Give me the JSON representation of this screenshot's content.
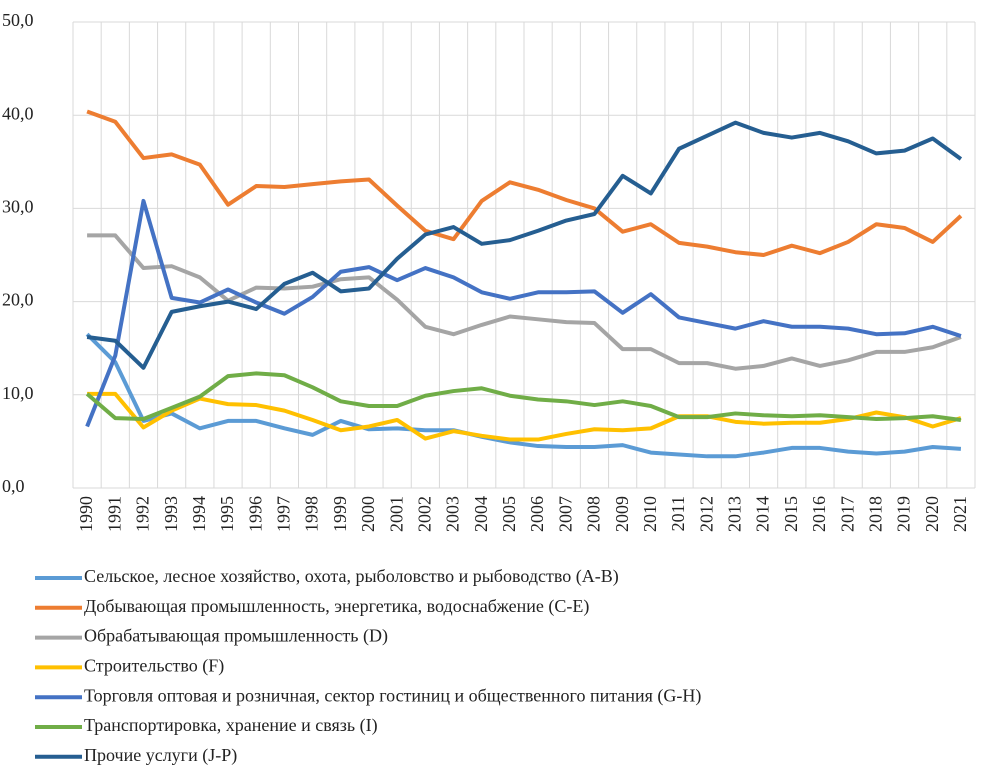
{
  "chart_data": {
    "type": "line",
    "categories": [
      "1990",
      "1991",
      "1992",
      "1993",
      "1994",
      "1995",
      "1996",
      "1997",
      "1998",
      "1999",
      "2000",
      "2001",
      "2002",
      "2003",
      "2004",
      "2005",
      "2006",
      "2007",
      "2008",
      "2009",
      "2010",
      "2011",
      "2012",
      "2013",
      "2014",
      "2015",
      "2016",
      "2017",
      "2018",
      "2019",
      "2020",
      "2021"
    ],
    "series": [
      {
        "name": "Сельское, лесное хозяйство, охота, рыболовство и рыбоводство (A-B)",
        "color": "#5b9bd5",
        "values": [
          16.5,
          13.5,
          7.2,
          8.0,
          6.4,
          7.2,
          7.2,
          6.4,
          5.7,
          7.2,
          6.3,
          6.4,
          6.2,
          6.2,
          5.5,
          4.9,
          4.5,
          4.4,
          4.4,
          4.6,
          3.8,
          3.6,
          3.4,
          3.4,
          3.8,
          4.3,
          4.3,
          3.9,
          3.7,
          3.9,
          4.4,
          4.2
        ]
      },
      {
        "name": "Добывающая промышленность, энергетика, водоснабжение (C-E)",
        "color": "#ed7d31",
        "values": [
          40.4,
          39.3,
          35.4,
          35.8,
          34.7,
          30.4,
          32.4,
          32.3,
          32.6,
          32.9,
          33.1,
          30.3,
          27.6,
          26.7,
          30.8,
          32.8,
          32.0,
          30.9,
          30.0,
          27.5,
          28.3,
          26.3,
          25.9,
          25.3,
          25.0,
          26.0,
          25.2,
          26.4,
          28.3,
          27.9,
          26.4,
          29.2
        ]
      },
      {
        "name": "Обрабатывающая промышленность (D)",
        "color": "#a5a5a5",
        "values": [
          27.1,
          27.1,
          23.6,
          23.8,
          22.6,
          20.1,
          21.5,
          21.4,
          21.6,
          22.4,
          22.6,
          20.2,
          17.3,
          16.5,
          17.5,
          18.4,
          18.1,
          17.8,
          17.7,
          14.9,
          14.9,
          13.4,
          13.4,
          12.8,
          13.1,
          13.9,
          13.1,
          13.7,
          14.6,
          14.6,
          15.1,
          16.2
        ]
      },
      {
        "name": "Строительство (F)",
        "color": "#ffc000",
        "values": [
          10.1,
          10.1,
          6.5,
          8.3,
          9.6,
          9.0,
          8.9,
          8.3,
          7.3,
          6.2,
          6.6,
          7.3,
          5.3,
          6.1,
          5.6,
          5.2,
          5.2,
          5.8,
          6.3,
          6.2,
          6.4,
          7.7,
          7.7,
          7.1,
          6.9,
          7.0,
          7.0,
          7.4,
          8.1,
          7.6,
          6.6,
          7.5
        ]
      },
      {
        "name": "Торговля оптовая и розничная, сектор гостиниц и общественного питания (G-H)",
        "color": "#4472c4",
        "values": [
          6.6,
          14.2,
          30.8,
          20.4,
          19.9,
          21.3,
          19.9,
          18.7,
          20.5,
          23.2,
          23.7,
          22.3,
          23.6,
          22.6,
          21.0,
          20.3,
          21.0,
          21.0,
          21.1,
          18.8,
          20.8,
          18.3,
          17.7,
          17.1,
          17.9,
          17.3,
          17.3,
          17.1,
          16.5,
          16.6,
          17.3,
          16.3
        ]
      },
      {
        "name": "Транспортировка, хранение и связь (I)",
        "color": "#70ad47",
        "values": [
          10.1,
          7.5,
          7.4,
          8.6,
          9.8,
          12.0,
          12.3,
          12.1,
          10.8,
          9.3,
          8.8,
          8.8,
          9.9,
          10.4,
          10.7,
          9.9,
          9.5,
          9.3,
          8.9,
          9.3,
          8.8,
          7.6,
          7.6,
          8.0,
          7.8,
          7.7,
          7.8,
          7.6,
          7.4,
          7.5,
          7.7,
          7.3
        ]
      },
      {
        "name": "Прочие услуги (J-P)",
        "color": "#255e91",
        "values": [
          16.2,
          15.8,
          12.9,
          18.9,
          19.5,
          20.0,
          19.2,
          21.9,
          23.1,
          21.1,
          21.4,
          24.6,
          27.2,
          28.0,
          26.2,
          26.6,
          27.6,
          28.7,
          29.4,
          33.5,
          31.6,
          36.4,
          37.8,
          39.2,
          38.1,
          37.6,
          38.1,
          37.2,
          35.9,
          36.2,
          37.5,
          35.3
        ]
      }
    ],
    "ylim": [
      0,
      50
    ],
    "yticks": [
      {
        "value": 0,
        "label": "0,0"
      },
      {
        "value": 10,
        "label": "10,0"
      },
      {
        "value": 20,
        "label": "20,0"
      },
      {
        "value": 30,
        "label": "30,0"
      },
      {
        "value": 40,
        "label": "40,0"
      },
      {
        "value": 50,
        "label": "50,0"
      }
    ],
    "grid": true
  }
}
